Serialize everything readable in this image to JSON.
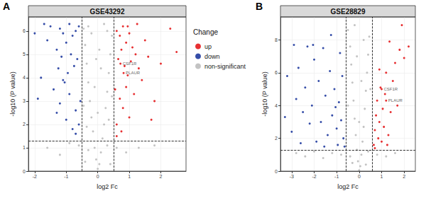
{
  "chart_data": [
    {
      "type": "scatter",
      "panel": "A",
      "title": "GSE43292",
      "x_label": "log2 Fc",
      "y_label": "-log10 (P value)",
      "xlim": [
        -2.2,
        2.8
      ],
      "xticks": [
        -2,
        -1,
        0,
        1,
        2
      ],
      "ylim": [
        0,
        6.6
      ],
      "yticks": [
        0,
        1,
        2,
        3,
        4,
        5,
        6
      ],
      "grid": true,
      "marker": "circle",
      "legend": "right",
      "legend_title": "Change",
      "cutoffs": {
        "x": [
          -0.5,
          0.5
        ],
        "y": 1.3
      },
      "annotations": [
        {
          "text": "CSF1R",
          "x": 0.72,
          "y": 4.6
        },
        {
          "text": "PLAUR",
          "x": 0.82,
          "y": 4.2
        }
      ],
      "series": [
        {
          "name": "up",
          "color": "#e41a1c",
          "values": [
            [
              0.6,
              6.0
            ],
            [
              0.7,
              5.8
            ],
            [
              0.8,
              6.2
            ],
            [
              0.9,
              5.5
            ],
            [
              1.0,
              5.9
            ],
            [
              1.1,
              5.3
            ],
            [
              1.2,
              5.0
            ],
            [
              0.65,
              4.8
            ],
            [
              0.75,
              5.2
            ],
            [
              0.85,
              4.5
            ],
            [
              0.95,
              4.1
            ],
            [
              1.05,
              4.7
            ],
            [
              1.3,
              4.4
            ],
            [
              1.4,
              3.9
            ],
            [
              0.55,
              3.5
            ],
            [
              0.7,
              3.1
            ],
            [
              0.8,
              2.7
            ],
            [
              0.9,
              3.6
            ],
            [
              1.0,
              2.3
            ],
            [
              1.15,
              3.3
            ],
            [
              0.6,
              2.0
            ],
            [
              0.75,
              1.7
            ],
            [
              1.5,
              5.6
            ],
            [
              1.6,
              4.9
            ],
            [
              1.8,
              3.0
            ],
            [
              2.0,
              4.6
            ],
            [
              2.3,
              6.1
            ],
            [
              2.5,
              5.1
            ],
            [
              1.25,
              6.3
            ],
            [
              0.95,
              6.2
            ],
            [
              0.6,
              1.5
            ],
            [
              1.7,
              2.2
            ],
            [
              0.72,
              4.6
            ],
            [
              0.82,
              4.2
            ]
          ]
        },
        {
          "name": "down",
          "color": "#1f3a9e",
          "values": [
            [
              -0.6,
              6.2
            ],
            [
              -0.7,
              6.0
            ],
            [
              -0.8,
              5.8
            ],
            [
              -0.9,
              6.3
            ],
            [
              -1.0,
              5.5
            ],
            [
              -1.1,
              5.9
            ],
            [
              -1.2,
              6.1
            ],
            [
              -1.3,
              5.2
            ],
            [
              -1.5,
              6.2
            ],
            [
              -1.7,
              6.3
            ],
            [
              -0.65,
              4.8
            ],
            [
              -0.75,
              4.5
            ],
            [
              -0.85,
              5.0
            ],
            [
              -0.95,
              4.2
            ],
            [
              -1.05,
              3.8
            ],
            [
              -1.15,
              4.9
            ],
            [
              -1.25,
              4.4
            ],
            [
              -1.4,
              3.5
            ],
            [
              -1.6,
              5.6
            ],
            [
              -0.55,
              3.0
            ],
            [
              -0.7,
              2.6
            ],
            [
              -0.9,
              3.3
            ],
            [
              -1.0,
              2.2
            ],
            [
              -1.2,
              2.9
            ],
            [
              -1.8,
              4.0
            ],
            [
              -2.0,
              5.9
            ],
            [
              -0.6,
              2.0
            ],
            [
              -0.8,
              1.8
            ],
            [
              -1.1,
              3.9
            ],
            [
              -1.3,
              2.5
            ],
            [
              -1.9,
              3.1
            ],
            [
              -0.7,
              1.6
            ]
          ]
        },
        {
          "name": "non-significant",
          "color": "#bdbdbd",
          "values": [
            [
              0.0,
              0.1
            ],
            [
              0.05,
              0.3
            ],
            [
              -0.05,
              0.5
            ],
            [
              0.1,
              0.8
            ],
            [
              -0.1,
              1.0
            ],
            [
              0.15,
              1.4
            ],
            [
              -0.15,
              1.7
            ],
            [
              0.2,
              2.0
            ],
            [
              -0.2,
              2.3
            ],
            [
              0.25,
              2.7
            ],
            [
              -0.25,
              3.0
            ],
            [
              0.3,
              3.4
            ],
            [
              -0.3,
              3.8
            ],
            [
              0.35,
              4.2
            ],
            [
              -0.35,
              4.6
            ],
            [
              0.4,
              5.0
            ],
            [
              -0.4,
              5.4
            ],
            [
              0.45,
              5.8
            ],
            [
              -0.45,
              6.1
            ],
            [
              0.2,
              6.3
            ],
            [
              -0.2,
              5.9
            ],
            [
              0.1,
              4.4
            ],
            [
              -0.1,
              3.6
            ],
            [
              0.0,
              2.5
            ],
            [
              0.3,
              1.1
            ],
            [
              -0.3,
              0.9
            ],
            [
              0.6,
              1.0
            ],
            [
              -0.6,
              1.1
            ],
            [
              0.9,
              0.8
            ],
            [
              -0.9,
              1.2
            ],
            [
              1.3,
              1.0
            ],
            [
              -1.2,
              0.7
            ],
            [
              0.4,
              0.3
            ],
            [
              -0.4,
              0.4
            ],
            [
              0.05,
              5.2
            ],
            [
              -0.05,
              4.8
            ],
            [
              0.3,
              6.0
            ],
            [
              -0.3,
              6.2
            ],
            [
              0.45,
              3.2
            ],
            [
              -0.45,
              2.8
            ],
            [
              0.35,
              2.2
            ],
            [
              -0.35,
              1.9
            ],
            [
              1.8,
              1.1
            ],
            [
              -1.6,
              1.0
            ]
          ]
        }
      ]
    },
    {
      "type": "scatter",
      "panel": "B",
      "title": "GSE28829",
      "x_label": "log2 Fc",
      "y_label": "-log10 (P value)",
      "xlim": [
        -3.5,
        2.5
      ],
      "xticks": [
        -3,
        -2,
        -1,
        0,
        1,
        2
      ],
      "ylim": [
        0,
        9.4
      ],
      "yticks": [
        0,
        2,
        4,
        6,
        8
      ],
      "grid": true,
      "marker": "circle",
      "cutoffs": {
        "x": [
          -0.58,
          0.58
        ],
        "y": 1.3
      },
      "annotations": [
        {
          "text": "CSF1R",
          "x": 1.0,
          "y": 5.0
        },
        {
          "text": "PLAUR",
          "x": 1.2,
          "y": 4.3
        }
      ],
      "series": [
        {
          "name": "up",
          "color": "#e41a1c",
          "values": [
            [
              0.65,
              1.6
            ],
            [
              0.7,
              2.5
            ],
            [
              0.75,
              3.4
            ],
            [
              0.8,
              4.3
            ],
            [
              0.85,
              2.0
            ],
            [
              0.9,
              3.0
            ],
            [
              0.95,
              5.1
            ],
            [
              1.0,
              1.8
            ],
            [
              1.05,
              3.8
            ],
            [
              1.1,
              2.7
            ],
            [
              1.15,
              4.7
            ],
            [
              1.2,
              6.0
            ],
            [
              1.3,
              2.2
            ],
            [
              1.4,
              3.6
            ],
            [
              1.5,
              5.5
            ],
            [
              1.6,
              6.6
            ],
            [
              1.7,
              4.0
            ],
            [
              1.8,
              7.4
            ],
            [
              1.9,
              8.9
            ],
            [
              2.0,
              6.9
            ],
            [
              2.2,
              7.6
            ],
            [
              1.35,
              7.9
            ],
            [
              0.7,
              1.4
            ],
            [
              1.25,
              1.6
            ],
            [
              0.9,
              6.2
            ],
            [
              1.0,
              5.0
            ],
            [
              1.2,
              4.3
            ]
          ]
        },
        {
          "name": "down",
          "color": "#1f3a9e",
          "values": [
            [
              -0.7,
              2.0
            ],
            [
              -0.8,
              3.1
            ],
            [
              -0.9,
              4.2
            ],
            [
              -1.0,
              2.6
            ],
            [
              -1.1,
              5.0
            ],
            [
              -1.2,
              3.4
            ],
            [
              -1.3,
              6.1
            ],
            [
              -1.4,
              2.2
            ],
            [
              -1.5,
              4.6
            ],
            [
              -1.6,
              7.5
            ],
            [
              -1.7,
              3.0
            ],
            [
              -1.8,
              5.5
            ],
            [
              -1.9,
              1.8
            ],
            [
              -2.0,
              6.8
            ],
            [
              -2.1,
              4.0
            ],
            [
              -2.2,
              2.9
            ],
            [
              -2.3,
              7.6
            ],
            [
              -2.4,
              5.1
            ],
            [
              -2.5,
              3.6
            ],
            [
              -2.6,
              1.7
            ],
            [
              -2.7,
              6.3
            ],
            [
              -2.8,
              4.4
            ],
            [
              -2.9,
              7.7
            ],
            [
              -3.0,
              2.4
            ],
            [
              -3.2,
              5.8
            ],
            [
              -3.3,
              3.3
            ],
            [
              -0.65,
              1.5
            ],
            [
              -0.75,
              5.8
            ],
            [
              -0.85,
              7.2
            ],
            [
              -1.25,
              8.3
            ],
            [
              -0.95,
              1.6
            ],
            [
              -1.05,
              3.9
            ],
            [
              -2.05,
              7.7
            ],
            [
              -1.55,
              1.5
            ]
          ]
        },
        {
          "name": "non-significant",
          "color": "#bdbdbd",
          "values": [
            [
              0.0,
              0.05
            ],
            [
              0.05,
              0.3
            ],
            [
              -0.05,
              0.6
            ],
            [
              0.1,
              1.0
            ],
            [
              -0.1,
              1.3
            ],
            [
              0.15,
              1.8
            ],
            [
              -0.15,
              2.2
            ],
            [
              0.2,
              2.7
            ],
            [
              -0.2,
              3.2
            ],
            [
              0.25,
              3.8
            ],
            [
              -0.25,
              4.3
            ],
            [
              0.3,
              4.9
            ],
            [
              -0.3,
              5.4
            ],
            [
              0.35,
              6.0
            ],
            [
              -0.35,
              6.5
            ],
            [
              0.4,
              7.1
            ],
            [
              -0.4,
              7.6
            ],
            [
              0.45,
              8.2
            ],
            [
              -0.5,
              8.6
            ],
            [
              0.5,
              5.0
            ],
            [
              -0.5,
              4.0
            ],
            [
              0.0,
              3.0
            ],
            [
              0.1,
              5.5
            ],
            [
              -0.1,
              7.0
            ],
            [
              0.4,
              1.2
            ],
            [
              -0.4,
              0.9
            ],
            [
              -0.8,
              1.0
            ],
            [
              -1.2,
              1.1
            ],
            [
              -1.6,
              0.8
            ],
            [
              -2.0,
              1.2
            ],
            [
              -2.4,
              0.9
            ],
            [
              -2.8,
              1.1
            ],
            [
              0.8,
              1.0
            ],
            [
              1.2,
              0.9
            ],
            [
              1.6,
              1.1
            ],
            [
              0.3,
              0.4
            ],
            [
              -0.3,
              0.5
            ],
            [
              -0.2,
              8.9
            ],
            [
              0.2,
              8.0
            ]
          ]
        }
      ]
    }
  ]
}
